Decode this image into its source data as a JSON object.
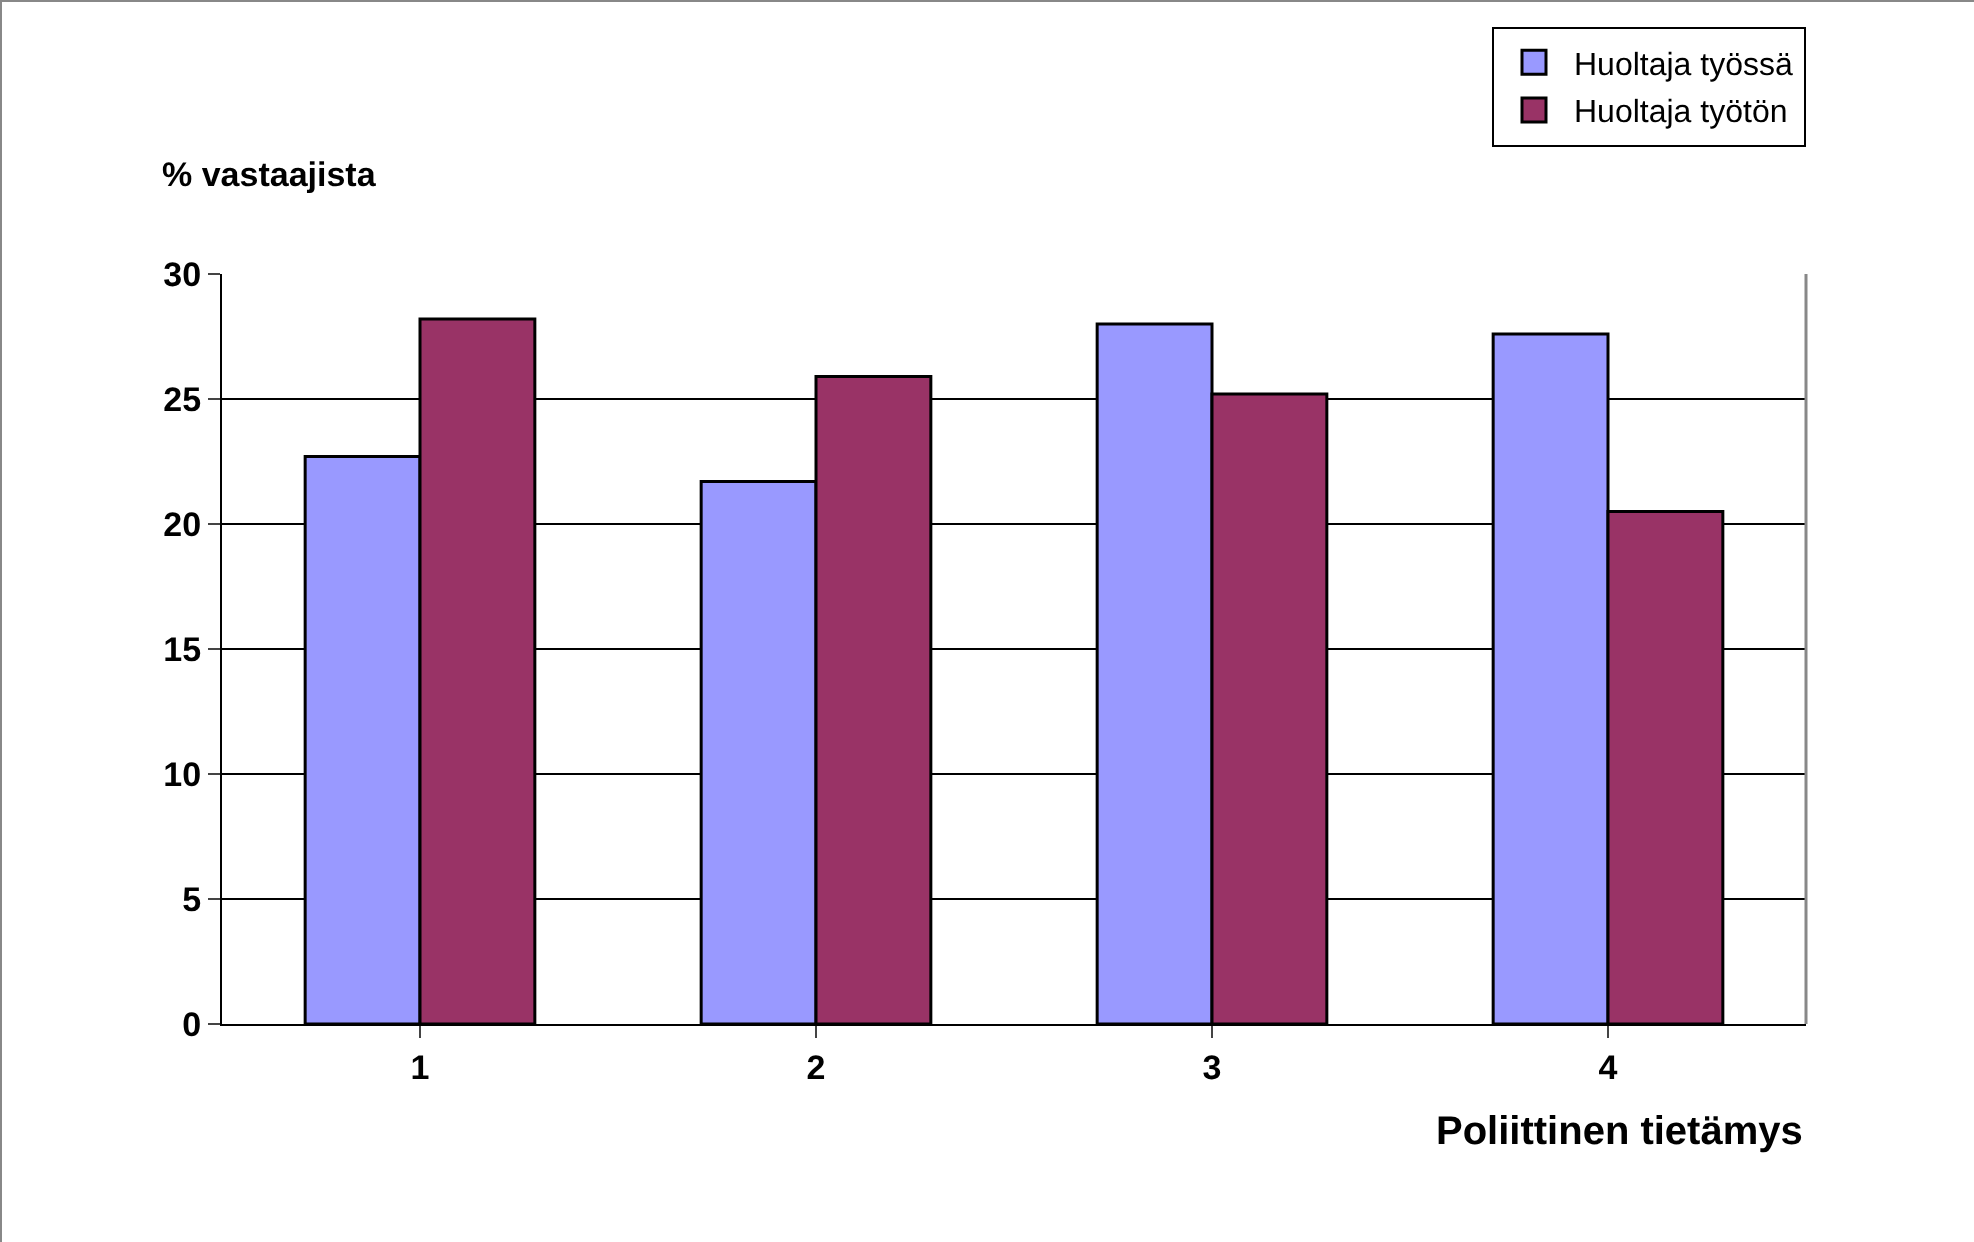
{
  "chart_data": {
    "type": "bar",
    "xlabel": "Poliittinen tietämys",
    "ylabel": "% vastaajista",
    "categories": [
      "1",
      "2",
      "3",
      "4"
    ],
    "series": [
      {
        "name": "Huoltaja työssä",
        "color": "#9999ff",
        "values": [
          22.7,
          21.7,
          28.0,
          27.6
        ]
      },
      {
        "name": "Huoltaja työtön",
        "color": "#993366",
        "values": [
          28.2,
          25.9,
          25.2,
          20.5
        ]
      }
    ],
    "ylim": [
      0,
      30
    ],
    "yticks": [
      0,
      5,
      10,
      15,
      20,
      25,
      30
    ],
    "grid": "y",
    "legend": "top right"
  }
}
